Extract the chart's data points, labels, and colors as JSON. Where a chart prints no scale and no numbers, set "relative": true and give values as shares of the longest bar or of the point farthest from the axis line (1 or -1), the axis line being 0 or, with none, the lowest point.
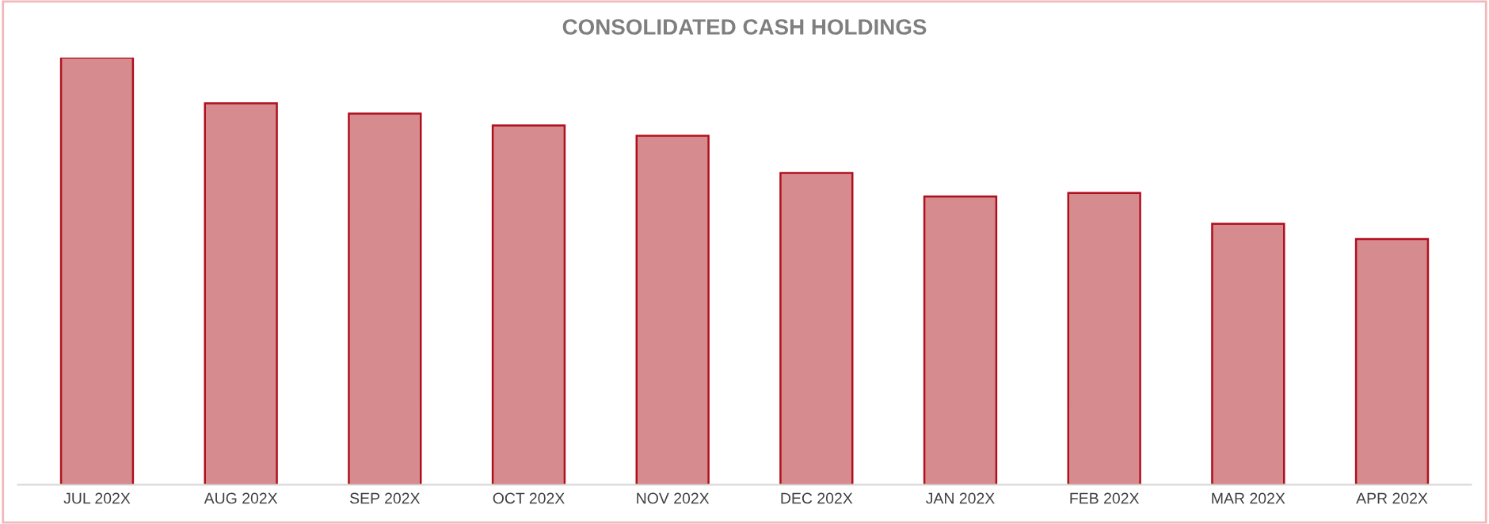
{
  "chart_data": {
    "type": "bar",
    "title": "CONSOLIDATED CASH HOLDINGS",
    "relative": true,
    "categories": [
      "JUL 202X",
      "AUG 202X",
      "SEP 202X",
      "OCT 202X",
      "NOV 202X",
      "DEC 202X",
      "JAN 202X",
      "FEB 202X",
      "MAR 202X",
      "APR 202X"
    ],
    "values": [
      1,
      0.893,
      0.869,
      0.841,
      0.817,
      0.73,
      0.675,
      0.683,
      0.611,
      0.575
    ],
    "color": "#d68b8e",
    "grid": false,
    "legend": false
  }
}
